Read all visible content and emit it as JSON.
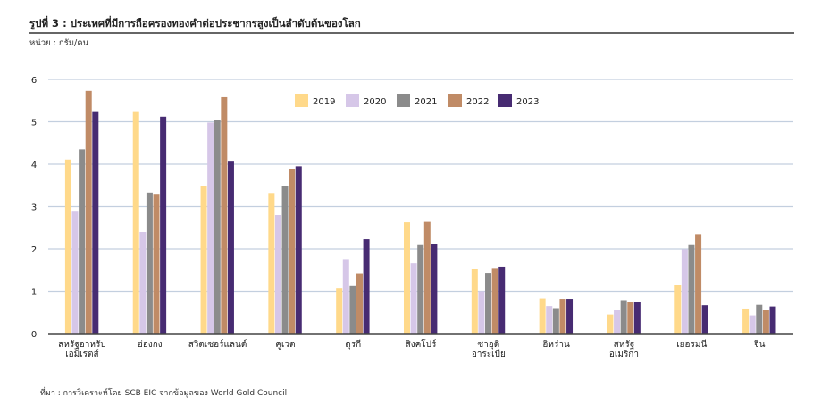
{
  "header": {
    "title": "รูปที่ 3 : ประเทศที่มีการถือครองทองคำต่อประชากรสูงเป็นลำดับต้นของโลก",
    "unit": "หน่วย : กรัม/คน"
  },
  "footer": {
    "source": "ที่มา : การวิเคราะห์โดย SCB EIC จากข้อมูลของ World Gold Council"
  },
  "chart_data": {
    "type": "bar",
    "title": "รูปที่ 3 : ประเทศที่มีการถือครองทองคำต่อประชากรสูงเป็นลำดับต้นของโลก",
    "ylabel": "กรัม/คน",
    "xlabel": "",
    "ylim": [
      0,
      6
    ],
    "yticks": [
      "0",
      "1",
      "2",
      "3",
      "4",
      "5",
      "6"
    ],
    "grid": true,
    "legend_position": "top-center",
    "categories": [
      [
        "สหรัฐอาหรับ",
        "เอมิเรตส์"
      ],
      [
        "ฮ่องกง"
      ],
      [
        "สวิตเซอร์แลนด์"
      ],
      [
        "คูเวต"
      ],
      [
        "ตุรกี"
      ],
      [
        "สิงคโปร์"
      ],
      [
        "ซาอุดิ",
        "อาระเบีย"
      ],
      [
        "อิหร่าน"
      ],
      [
        "สหรัฐ",
        "อเมริกา"
      ],
      [
        "เยอรมนี"
      ],
      [
        "จีน"
      ]
    ],
    "series": [
      {
        "name": "2019",
        "color": "#ffd98a",
        "values": [
          4.11,
          5.25,
          3.49,
          3.32,
          1.07,
          2.63,
          1.52,
          0.83,
          0.45,
          1.15,
          0.59
        ]
      },
      {
        "name": "2020",
        "color": "#d6c7e8",
        "values": [
          2.88,
          2.4,
          4.98,
          2.8,
          1.76,
          1.66,
          1.0,
          0.65,
          0.56,
          1.99,
          0.43
        ]
      },
      {
        "name": "2021",
        "color": "#8b8b8b",
        "values": [
          4.35,
          3.33,
          5.05,
          3.48,
          1.12,
          2.09,
          1.43,
          0.6,
          0.79,
          2.09,
          0.68
        ]
      },
      {
        "name": "2022",
        "color": "#c08b66",
        "values": [
          5.73,
          3.28,
          5.58,
          3.88,
          1.42,
          2.64,
          1.55,
          0.82,
          0.75,
          2.35,
          0.55
        ]
      },
      {
        "name": "2023",
        "color": "#472b72",
        "values": [
          5.25,
          5.12,
          4.06,
          3.95,
          2.23,
          2.11,
          1.58,
          0.82,
          0.74,
          0.67,
          0.64
        ]
      }
    ]
  }
}
